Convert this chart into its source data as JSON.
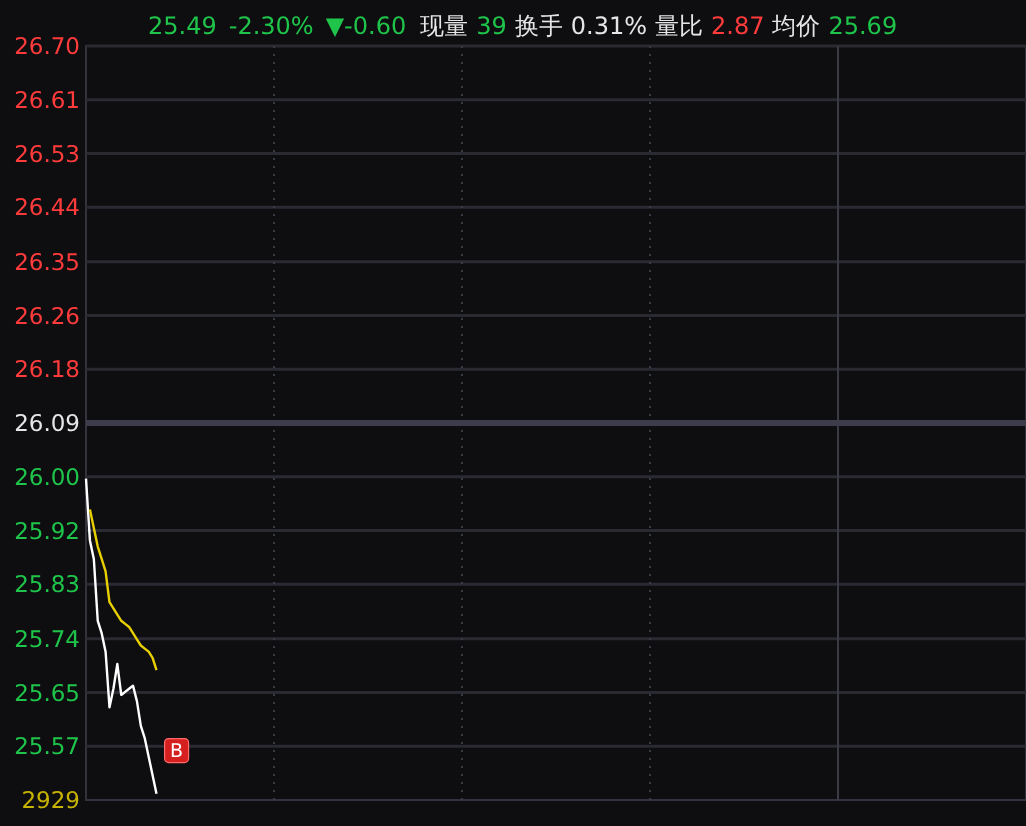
{
  "chart_data": {
    "type": "line",
    "title": "25.49 -2.30% ▼-0.60",
    "subtitle": "现量 39 换手 0.31% 量比 2.87 均价 25.69",
    "categories": [
      null,
      null,
      null,
      null,
      null,
      null,
      null,
      null,
      null,
      null,
      null,
      null,
      null,
      null,
      null,
      null,
      null,
      null,
      null,
      null,
      null,
      null,
      null,
      null,
      null,
      null,
      null,
      null,
      null,
      null,
      null,
      null,
      null,
      null,
      null,
      null,
      null,
      null,
      null,
      null,
      null,
      null,
      null,
      null,
      null,
      null,
      null,
      null,
      null,
      null,
      null,
      null,
      null,
      null,
      null,
      null,
      null,
      null,
      null,
      null,
      null,
      null,
      null,
      null,
      null,
      null,
      null,
      null,
      null,
      null,
      null,
      null,
      null,
      null,
      null,
      null,
      null,
      null,
      null,
      null,
      null,
      null,
      null,
      null,
      null,
      null,
      null,
      null,
      null,
      null,
      null,
      null,
      null,
      null,
      null,
      null,
      null,
      null,
      null,
      null,
      null,
      null,
      null,
      null,
      null,
      null,
      null,
      null,
      null,
      null,
      null,
      null,
      null,
      null,
      null,
      null,
      null,
      null,
      null,
      null,
      null,
      null,
      null,
      null,
      null,
      null,
      null,
      null,
      null,
      null,
      null,
      null,
      null,
      null,
      null,
      null,
      null,
      null,
      null,
      null,
      null,
      null,
      null,
      null,
      null,
      null,
      null,
      null,
      null,
      null,
      null,
      null,
      null,
      null,
      null,
      null,
      null,
      null,
      null,
      null,
      null,
      null,
      null,
      null,
      null,
      null,
      null,
      null,
      null,
      null,
      null,
      null,
      null,
      null,
      null,
      null,
      null,
      null,
      null,
      null,
      null,
      null,
      null,
      null,
      null,
      null,
      null,
      null,
      null,
      null,
      null,
      null,
      null,
      null,
      null,
      null,
      null,
      null,
      null,
      null,
      null,
      null,
      null,
      null,
      null,
      null,
      null,
      null,
      null,
      null,
      null,
      null,
      null,
      null,
      null,
      null,
      null,
      null,
      null,
      null,
      null,
      null,
      null,
      null,
      null,
      null,
      null,
      null,
      null,
      null,
      null,
      null,
      null,
      null,
      null,
      null,
      null,
      null,
      null,
      null,
      null
    ],
    "series": [
      {
        "color": "#ffffff",
        "values": [
          26.0,
          25.9,
          25.87,
          25.77,
          25.75,
          25.72,
          25.63,
          25.66,
          25.7,
          25.65,
          25.655,
          25.66,
          25.665,
          25.64,
          25.6,
          25.58,
          25.55,
          25.52,
          25.49,
          null,
          null,
          null,
          null,
          null,
          null,
          null,
          null,
          null,
          null,
          null,
          null,
          null,
          null,
          null,
          null,
          null,
          null,
          null,
          null,
          null,
          null,
          null,
          null,
          null,
          null,
          null,
          null,
          null,
          null,
          null,
          null,
          null,
          null,
          null,
          null,
          null,
          null,
          null,
          null,
          null,
          null,
          null,
          null,
          null,
          null,
          null,
          null,
          null,
          null,
          null,
          null,
          null,
          null,
          null,
          null,
          null,
          null,
          null,
          null,
          null,
          null,
          null,
          null,
          null,
          null,
          null,
          null,
          null,
          null,
          null,
          null,
          null,
          null,
          null,
          null,
          null,
          null,
          null,
          null,
          null,
          null,
          null,
          null,
          null,
          null,
          null,
          null,
          null,
          null,
          null,
          null,
          null,
          null,
          null,
          null,
          null,
          null,
          null,
          null,
          null,
          null,
          null,
          null,
          null,
          null,
          null,
          null,
          null,
          null,
          null,
          null,
          null,
          null,
          null,
          null,
          null,
          null,
          null,
          null,
          null,
          null,
          null,
          null,
          null,
          null,
          null,
          null,
          null,
          null,
          null,
          null,
          null,
          null,
          null,
          null,
          null,
          null,
          null,
          null,
          null,
          null,
          null,
          null,
          null,
          null,
          null,
          null,
          null,
          null,
          null,
          null,
          null,
          null,
          null,
          null,
          null,
          null,
          null,
          null,
          null,
          null,
          null,
          null,
          null,
          null,
          null,
          null,
          null,
          null,
          null,
          null,
          null,
          null,
          null,
          null,
          null,
          null,
          null,
          null,
          null,
          null,
          null,
          null,
          null,
          null,
          null,
          null,
          null,
          null,
          null,
          null,
          null,
          null,
          null,
          null,
          null,
          null,
          null,
          null,
          null,
          null,
          null,
          null,
          null,
          null,
          null,
          null,
          null,
          null,
          null,
          null,
          null,
          null,
          null,
          null,
          null,
          null,
          null,
          null,
          null,
          null
        ]
      },
      {
        "color": "#e8d000",
        "values": [
          null,
          25.95,
          25.92,
          25.89,
          25.87,
          25.85,
          25.8,
          25.79,
          25.78,
          25.77,
          25.765,
          25.76,
          25.75,
          25.74,
          25.73,
          25.725,
          25.72,
          25.71,
          25.69,
          null,
          null,
          null,
          null,
          null,
          null,
          null,
          null,
          null,
          null,
          null,
          null,
          null,
          null,
          null,
          null,
          null,
          null,
          null,
          null,
          null,
          null,
          null,
          null,
          null,
          null,
          null,
          null,
          null,
          null,
          null,
          null,
          null,
          null,
          null,
          null,
          null,
          null,
          null,
          null,
          null,
          null,
          null,
          null,
          null,
          null,
          null,
          null,
          null,
          null,
          null,
          null,
          null,
          null,
          null,
          null,
          null,
          null,
          null,
          null,
          null,
          null,
          null,
          null,
          null,
          null,
          null,
          null,
          null,
          null,
          null,
          null,
          null,
          null,
          null,
          null,
          null,
          null,
          null,
          null,
          null,
          null,
          null,
          null,
          null,
          null,
          null,
          null,
          null,
          null,
          null,
          null,
          null,
          null,
          null,
          null,
          null,
          null,
          null,
          null,
          null,
          null,
          null,
          null,
          null,
          null,
          null,
          null,
          null,
          null,
          null,
          null,
          null,
          null,
          null,
          null,
          null,
          null,
          null,
          null,
          null,
          null,
          null,
          null,
          null,
          null,
          null,
          null,
          null,
          null,
          null,
          null,
          null,
          null,
          null,
          null,
          null,
          null,
          null,
          null,
          null,
          null,
          null,
          null,
          null,
          null,
          null,
          null,
          null,
          null,
          null,
          null,
          null,
          null,
          null,
          null,
          null,
          null,
          null,
          null,
          null,
          null,
          null,
          null,
          null,
          null,
          null,
          null,
          null,
          null,
          null,
          null,
          null,
          null,
          null,
          null,
          null,
          null,
          null,
          null,
          null,
          null,
          null,
          null,
          null,
          null,
          null,
          null,
          null,
          null,
          null,
          null,
          null,
          null,
          null,
          null,
          null,
          null,
          null,
          null,
          null,
          null,
          null,
          null,
          null,
          null,
          null,
          null,
          null,
          null,
          null,
          null,
          null,
          null,
          null,
          null,
          null,
          null,
          null,
          null,
          null,
          null
        ]
      }
    ],
    "ylim": [
      25.48,
      26.7
    ],
    "yticks": [
      {
        "value": 26.7,
        "label": "26.70"
      },
      {
        "value": 26.613,
        "label": "26.61"
      },
      {
        "value": 26.526,
        "label": "26.53"
      },
      {
        "value": 26.439,
        "label": "26.44"
      },
      {
        "value": 26.351,
        "label": "26.35"
      },
      {
        "value": 26.264,
        "label": "26.26"
      },
      {
        "value": 26.177,
        "label": "26.18"
      },
      {
        "value": 26.09,
        "label": "26.09"
      },
      {
        "value": 26.003,
        "label": "26.00"
      },
      {
        "value": 25.916,
        "label": "25.92"
      },
      {
        "value": 25.829,
        "label": "25.83"
      },
      {
        "value": 25.741,
        "label": "25.74"
      },
      {
        "value": 25.654,
        "label": "25.65"
      },
      {
        "value": 25.567,
        "label": "25.57"
      }
    ],
    "ref_lines": [
      {
        "axis": "y",
        "value": 26.09,
        "color": "#3c3c4a"
      }
    ],
    "annotations": [
      {
        "text": "B",
        "y": 25.56
      },
      "2929"
    ],
    "grid": true,
    "marker": "none",
    "line_style": "solid"
  }
}
